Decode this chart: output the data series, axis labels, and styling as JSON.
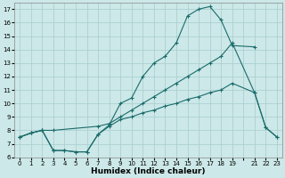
{
  "bg_color": "#cce8e8",
  "grid_color": "#a8cccc",
  "line_color": "#1a6b6b",
  "curve1_x": [
    0,
    1,
    2,
    3,
    4,
    5,
    6,
    7,
    8,
    9,
    10,
    11,
    12,
    13,
    14,
    15,
    16,
    17,
    18,
    19,
    21
  ],
  "curve1_y": [
    7.5,
    7.8,
    8.0,
    6.5,
    6.5,
    6.4,
    6.4,
    7.7,
    8.4,
    10.0,
    10.4,
    12.0,
    13.0,
    13.5,
    14.5,
    16.5,
    17.0,
    17.2,
    16.2,
    14.3,
    14.2
  ],
  "curve2_x": [
    0,
    1,
    2,
    3,
    7,
    8,
    9,
    10,
    11,
    12,
    13,
    14,
    15,
    16,
    17,
    18,
    19,
    21,
    22,
    23
  ],
  "curve2_y": [
    7.5,
    7.8,
    8.0,
    8.0,
    8.3,
    8.5,
    9.0,
    9.5,
    10.0,
    10.5,
    11.0,
    11.5,
    12.0,
    12.5,
    13.0,
    13.5,
    14.5,
    10.8,
    8.2,
    7.5
  ],
  "curve3_x": [
    0,
    1,
    2,
    3,
    4,
    5,
    6,
    7,
    8,
    9,
    10,
    11,
    12,
    13,
    14,
    15,
    16,
    17,
    18,
    19,
    21,
    22,
    23
  ],
  "curve3_y": [
    7.5,
    7.8,
    8.0,
    6.5,
    6.5,
    6.4,
    6.4,
    7.7,
    8.3,
    8.8,
    9.0,
    9.3,
    9.5,
    9.8,
    10.0,
    10.3,
    10.5,
    10.8,
    11.0,
    11.5,
    10.8,
    8.2,
    7.5
  ],
  "xlim": [
    -0.5,
    23.5
  ],
  "ylim": [
    6.0,
    17.5
  ],
  "yticks": [
    6,
    7,
    8,
    9,
    10,
    11,
    12,
    13,
    14,
    15,
    16,
    17
  ],
  "xtick_positions": [
    0,
    1,
    2,
    3,
    4,
    5,
    6,
    7,
    8,
    9,
    10,
    11,
    12,
    13,
    14,
    15,
    16,
    17,
    18,
    19,
    20,
    21,
    22,
    23
  ],
  "xtick_labels": [
    "0",
    "1",
    "2",
    "3",
    "4",
    "5",
    "6",
    "7",
    "8",
    "9",
    "10",
    "11",
    "12",
    "13",
    "14",
    "15",
    "16",
    "17",
    "18",
    "19",
    "",
    "21",
    "22",
    "23"
  ],
  "xlabel": "Humidex (Indice chaleur)"
}
